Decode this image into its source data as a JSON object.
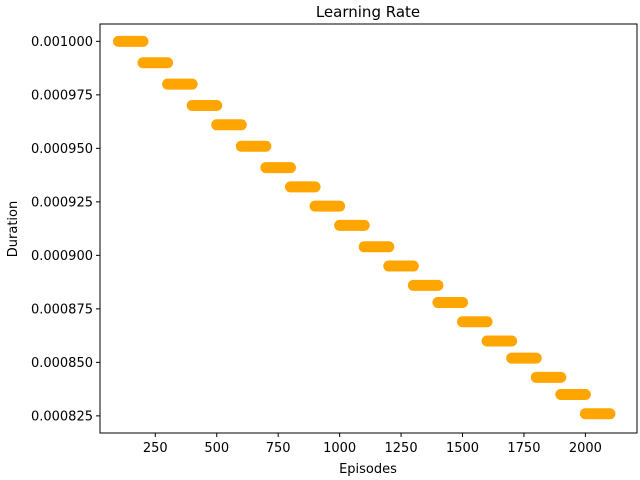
{
  "chart_data": {
    "type": "scatter",
    "title": "Learning Rate",
    "xlabel": "Episodes",
    "ylabel": "Duration",
    "xlim": [
      25,
      2210
    ],
    "ylim": [
      0.000817,
      0.0010081
    ],
    "xticks": [
      250,
      500,
      750,
      1000,
      1250,
      1500,
      1750,
      2000
    ],
    "xtick_labels": [
      "250",
      "500",
      "750",
      "1000",
      "1250",
      "1500",
      "1750",
      "2000"
    ],
    "yticks": [
      0.000825,
      0.00085,
      0.000875,
      0.0009,
      0.000925,
      0.00095,
      0.000975,
      0.001
    ],
    "ytick_labels": [
      "0.000825",
      "0.000850",
      "0.000875",
      "0.000900",
      "0.000925",
      "0.000950",
      "0.000975",
      "0.001000"
    ],
    "grid": false,
    "color": "#FFA500",
    "steps": [
      {
        "x_start": 100,
        "x_end": 200,
        "value": 0.001
      },
      {
        "x_start": 200,
        "x_end": 300,
        "value": 0.00099
      },
      {
        "x_start": 300,
        "x_end": 400,
        "value": 0.00098
      },
      {
        "x_start": 400,
        "x_end": 500,
        "value": 0.00097
      },
      {
        "x_start": 500,
        "x_end": 600,
        "value": 0.000961
      },
      {
        "x_start": 600,
        "x_end": 700,
        "value": 0.000951
      },
      {
        "x_start": 700,
        "x_end": 800,
        "value": 0.000941
      },
      {
        "x_start": 800,
        "x_end": 900,
        "value": 0.000932
      },
      {
        "x_start": 900,
        "x_end": 1000,
        "value": 0.000923
      },
      {
        "x_start": 1000,
        "x_end": 1100,
        "value": 0.000914
      },
      {
        "x_start": 1100,
        "x_end": 1200,
        "value": 0.000904
      },
      {
        "x_start": 1200,
        "x_end": 1300,
        "value": 0.000895
      },
      {
        "x_start": 1300,
        "x_end": 1400,
        "value": 0.000886
      },
      {
        "x_start": 1400,
        "x_end": 1500,
        "value": 0.000878
      },
      {
        "x_start": 1500,
        "x_end": 1600,
        "value": 0.000869
      },
      {
        "x_start": 1600,
        "x_end": 1700,
        "value": 0.00086
      },
      {
        "x_start": 1700,
        "x_end": 1800,
        "value": 0.000852
      },
      {
        "x_start": 1800,
        "x_end": 1900,
        "value": 0.000843
      },
      {
        "x_start": 1900,
        "x_end": 2000,
        "value": 0.000835
      },
      {
        "x_start": 2000,
        "x_end": 2100,
        "value": 0.000826
      }
    ]
  }
}
